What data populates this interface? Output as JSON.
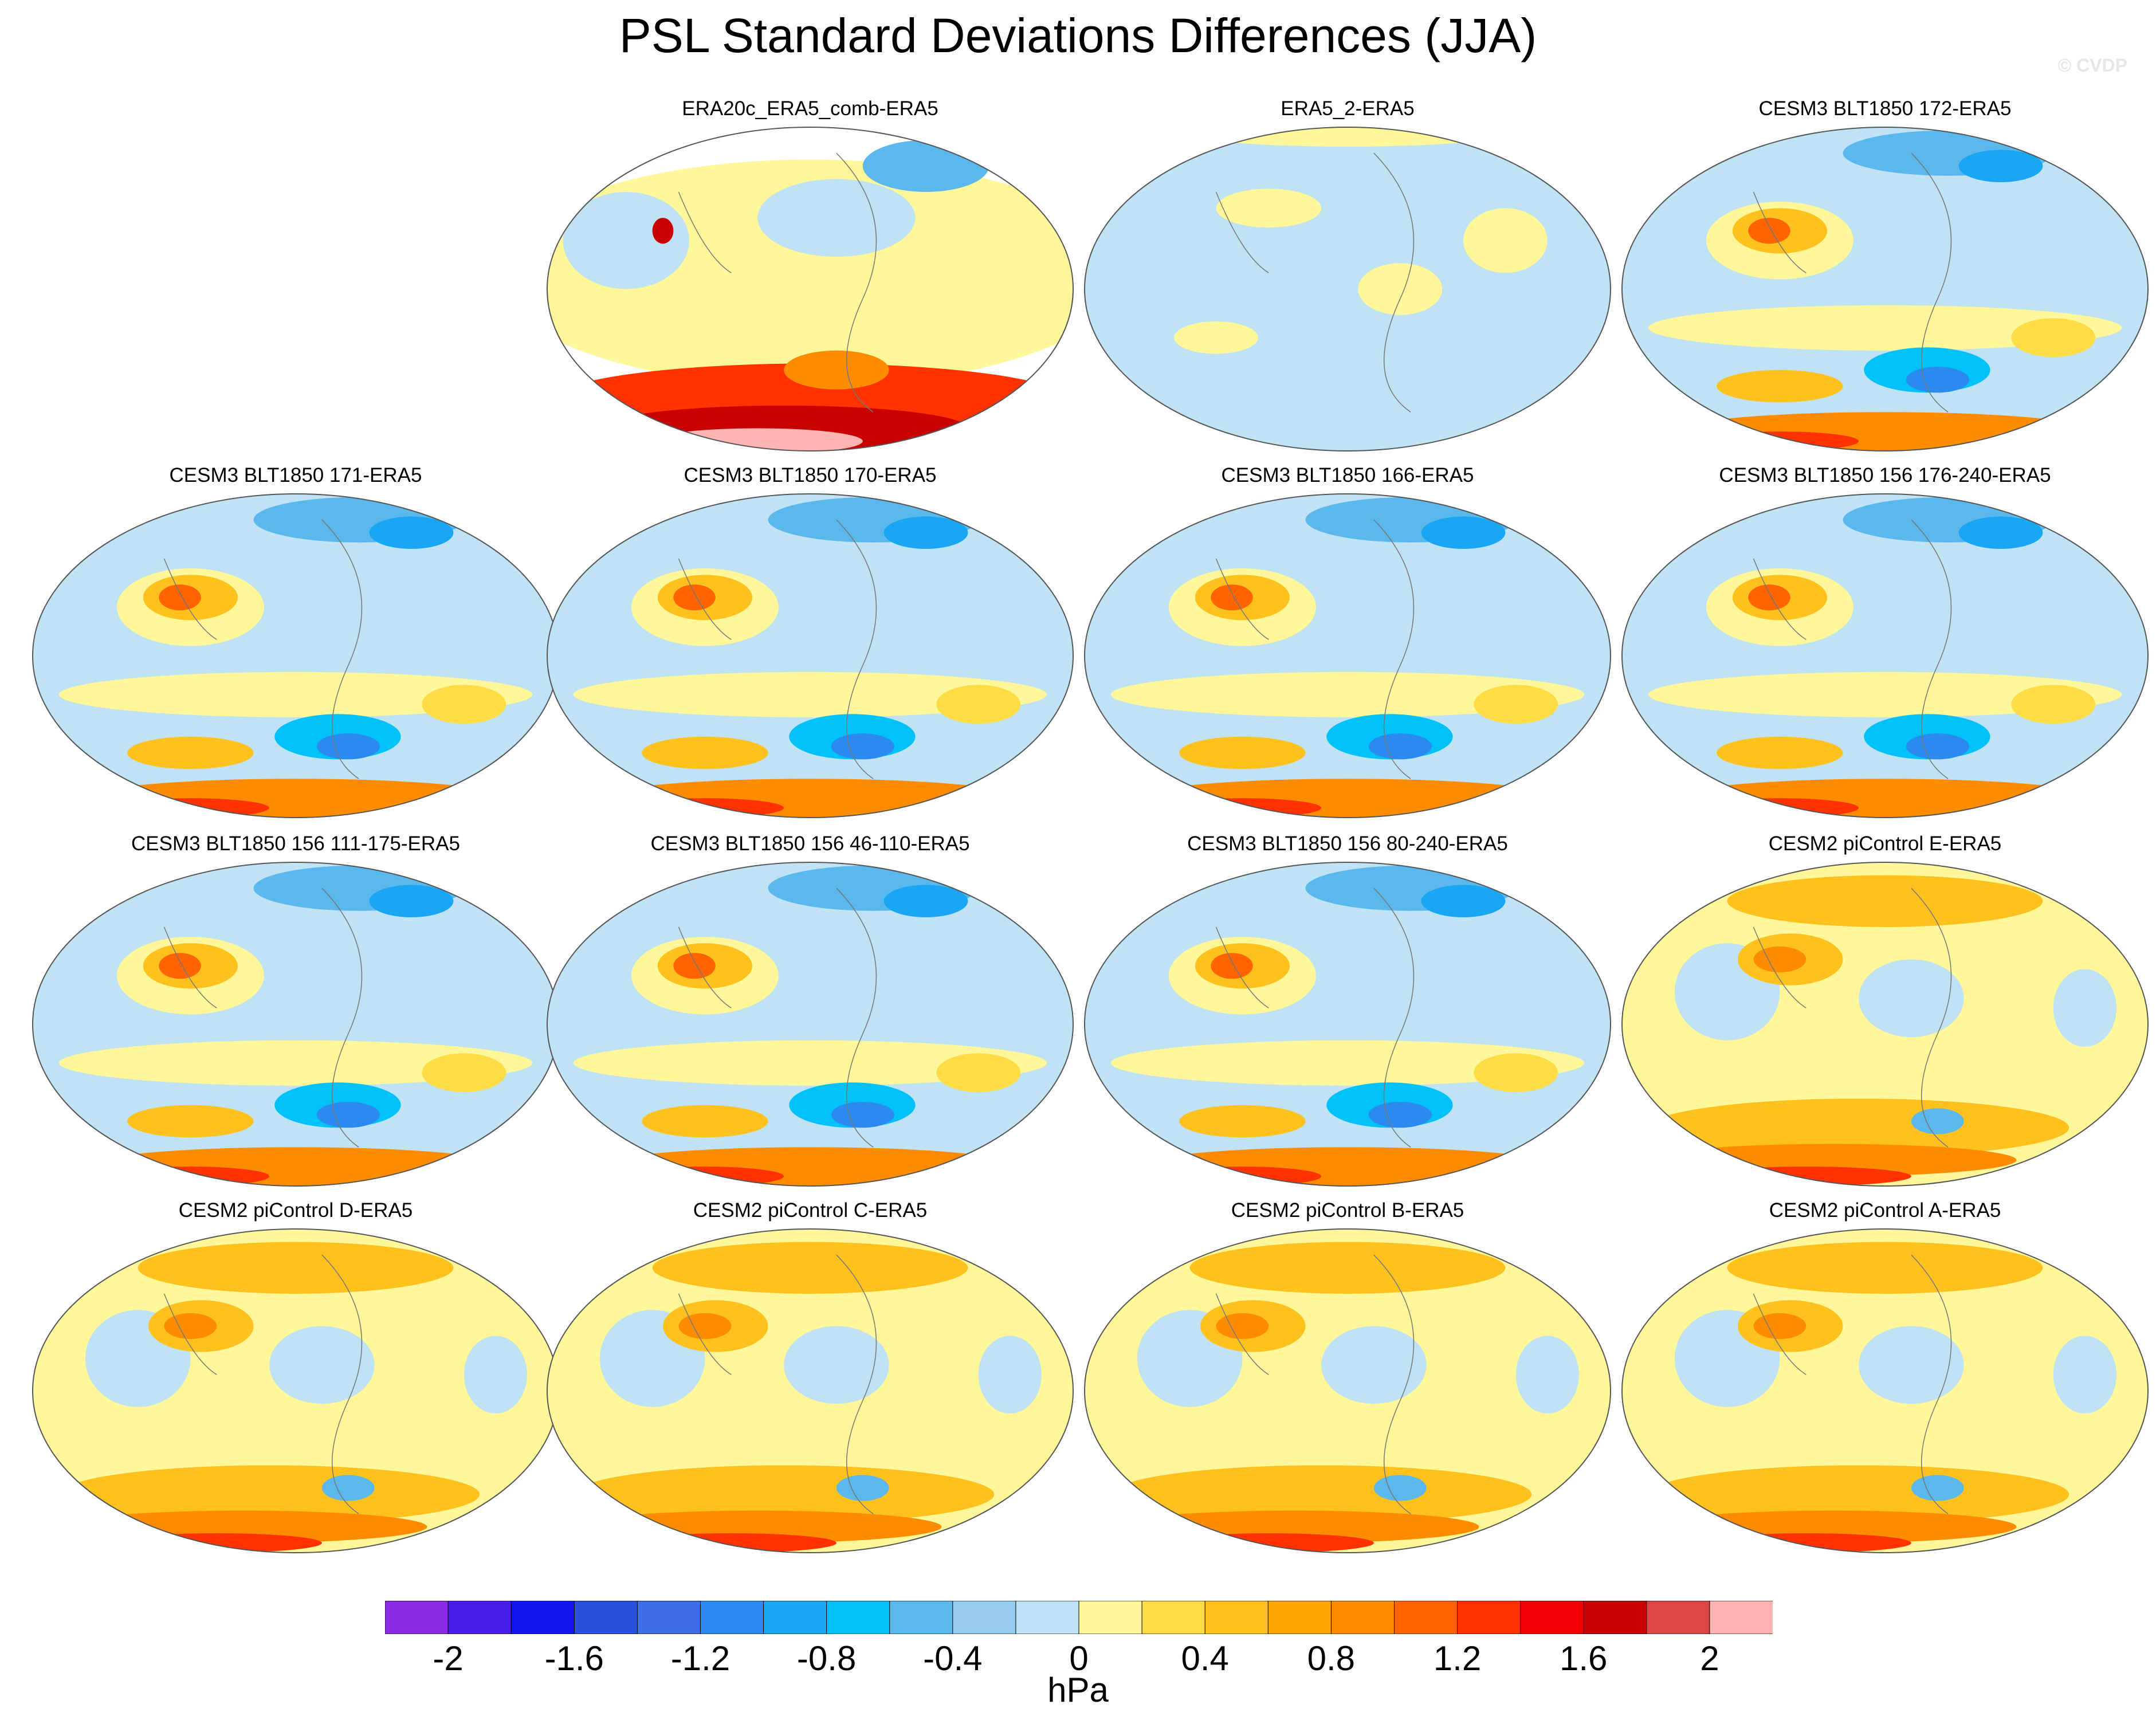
{
  "title": "PSL Standard Deviations Differences (JJA)",
  "watermark": "© CVDP",
  "colorbar": {
    "units": "hPa",
    "ticks": [
      "-2",
      "-1.6",
      "-1.2",
      "-0.8",
      "-0.4",
      "0",
      "0.4",
      "0.8",
      "1.2",
      "1.6",
      "2"
    ],
    "levels": [
      -2,
      -1.8,
      -1.6,
      -1.4,
      -1.2,
      -1,
      -0.8,
      -0.6,
      -0.4,
      -0.2,
      0,
      0.2,
      0.4,
      0.6,
      0.8,
      1,
      1.2,
      1.4,
      1.6,
      1.8,
      2
    ],
    "colors": [
      "#8a2be6",
      "#4a1ee8",
      "#1414f0",
      "#2850dc",
      "#3c6ee6",
      "#2a8af0",
      "#1aa6f2",
      "#00c2f8",
      "#5ab8ec",
      "#96cdee",
      "#bfe2f4",
      "#fff79a",
      "#ffdc46",
      "#ffc11e",
      "#ffa500",
      "#ff8c00",
      "#ff6400",
      "#ff3200",
      "#f00000",
      "#c80000",
      "#dc4646",
      "#ffb4b4"
    ]
  },
  "panels": [
    {
      "title": "ERA20c_ERA5_comb-ERA5",
      "pattern": "reanalysis_comb"
    },
    {
      "title": "ERA5_2-ERA5",
      "pattern": "reanalysis_near_zero"
    },
    {
      "title": "CESM3 BLT1850 172-ERA5",
      "pattern": "cesm3"
    },
    {
      "title": "CESM3 BLT1850 171-ERA5",
      "pattern": "cesm3"
    },
    {
      "title": "CESM3 BLT1850 170-ERA5",
      "pattern": "cesm3"
    },
    {
      "title": "CESM3 BLT1850 166-ERA5",
      "pattern": "cesm3"
    },
    {
      "title": "CESM3 BLT1850 156 176-240-ERA5",
      "pattern": "cesm3"
    },
    {
      "title": "CESM3 BLT1850 156 111-175-ERA5",
      "pattern": "cesm3"
    },
    {
      "title": "CESM3 BLT1850 156 46-110-ERA5",
      "pattern": "cesm3"
    },
    {
      "title": "CESM3 BLT1850 156 80-240-ERA5",
      "pattern": "cesm3"
    },
    {
      "title": "CESM2 piControl E-ERA5",
      "pattern": "cesm2"
    },
    {
      "title": "CESM2 piControl D-ERA5",
      "pattern": "cesm2"
    },
    {
      "title": "CESM2 piControl C-ERA5",
      "pattern": "cesm2"
    },
    {
      "title": "CESM2 piControl B-ERA5",
      "pattern": "cesm2"
    },
    {
      "title": "CESM2 piControl A-ERA5",
      "pattern": "cesm2"
    }
  ]
}
